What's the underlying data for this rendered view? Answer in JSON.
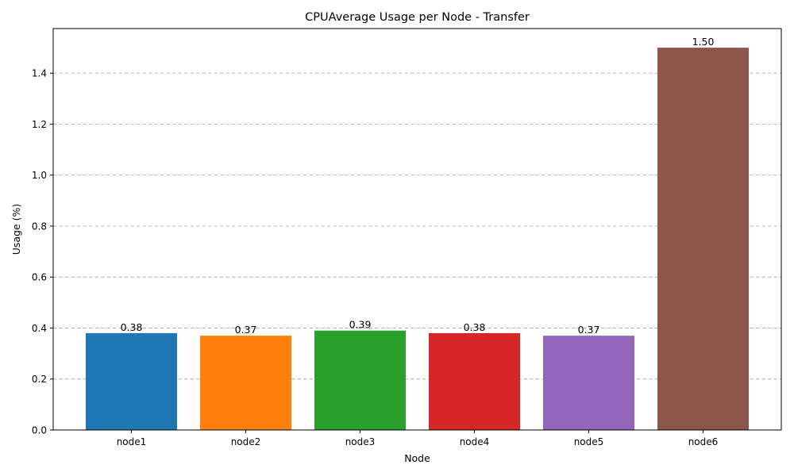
{
  "chart_data": {
    "type": "bar",
    "title": "CPUAverage Usage per Node - Transfer",
    "xlabel": "Node",
    "ylabel": "Usage (%)",
    "categories": [
      "node1",
      "node2",
      "node3",
      "node4",
      "node5",
      "node6"
    ],
    "values": [
      0.38,
      0.37,
      0.39,
      0.38,
      0.37,
      1.5
    ],
    "value_labels": [
      "0.38",
      "0.37",
      "0.39",
      "0.38",
      "0.37",
      "1.50"
    ],
    "colors": [
      "#1f77b4",
      "#ff7f0e",
      "#2ca02c",
      "#d62728",
      "#9467bd",
      "#8c564b"
    ],
    "ylim": [
      0,
      1.575
    ],
    "yticks": [
      0.0,
      0.2,
      0.4,
      0.6,
      0.8,
      1.0,
      1.2,
      1.4
    ],
    "ytick_labels": [
      "0.0",
      "0.2",
      "0.4",
      "0.6",
      "0.8",
      "1.0",
      "1.2",
      "1.4"
    ],
    "grid": "y-dashed",
    "legend": "none"
  }
}
